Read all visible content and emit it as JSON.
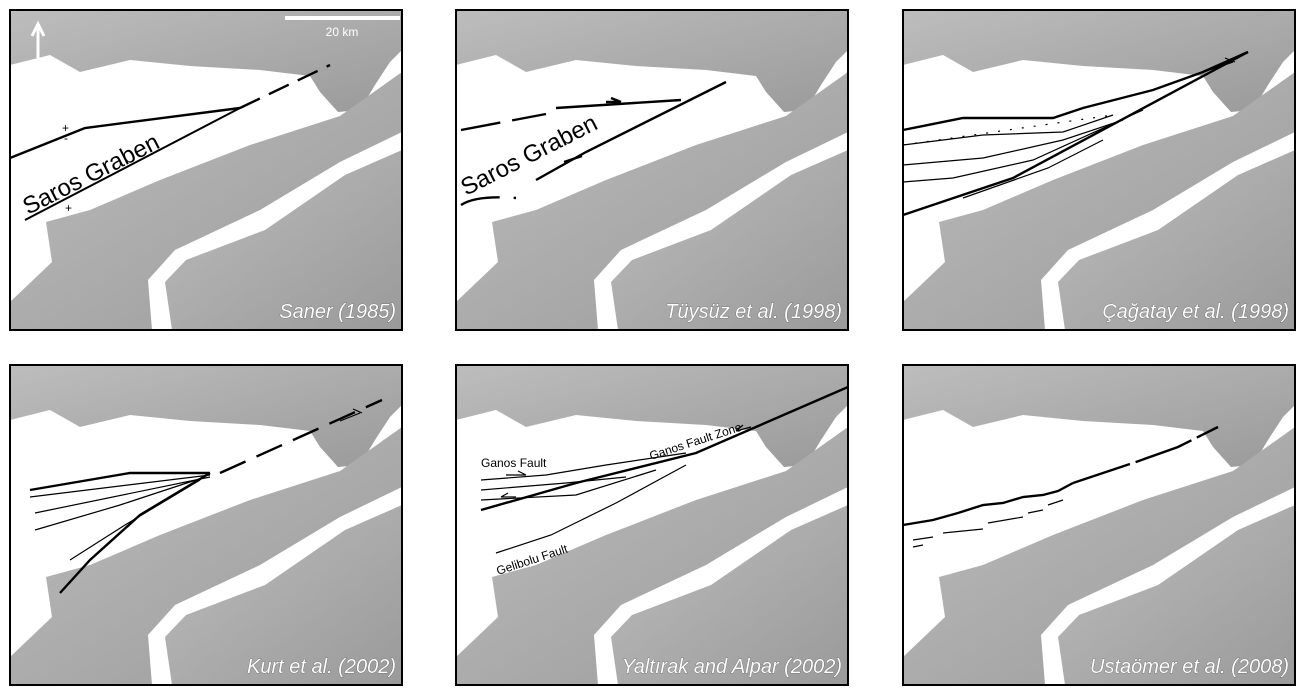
{
  "scale_bar": "20 km",
  "panels": [
    {
      "citation": "Saner (1985)",
      "annotations": [
        "Saros Graben",
        "+",
        "-",
        "-",
        "+"
      ]
    },
    {
      "citation": "Tüysüz et al. (1998)",
      "annotations": [
        "Saros Graben"
      ]
    },
    {
      "citation": "Çağatay et al. (1998)",
      "annotations": []
    },
    {
      "citation": "Kurt et al. (2002)",
      "annotations": []
    },
    {
      "citation": "Yaltırak and Alpar (2002)",
      "annotations": [
        "Ganos Fault",
        "Ganos Fault Zone",
        "Gelibolu Fault"
      ]
    },
    {
      "citation": "Ustaömer et al.  (2008)",
      "annotations": []
    }
  ]
}
